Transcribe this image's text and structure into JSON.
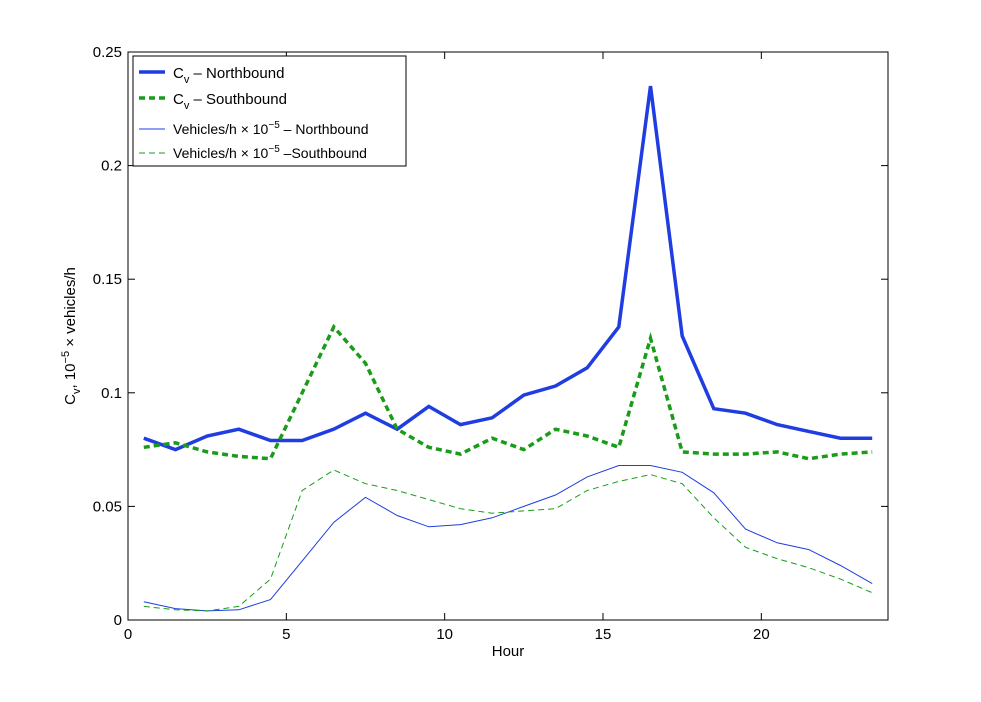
{
  "chart_data": {
    "type": "line",
    "xlabel": "Hour",
    "ylabel": {
      "base": "C",
      "base_sub": "v",
      "comma": ", 10",
      "exp": "−5",
      "rest": " × vehicles/h"
    },
    "xlim": [
      0,
      24
    ],
    "ylim": [
      0,
      0.25
    ],
    "xticks": [
      0,
      5,
      10,
      15,
      20
    ],
    "xtick_labels": [
      "0",
      "5",
      "10",
      "15",
      "20"
    ],
    "yticks": [
      0,
      0.05,
      0.1,
      0.15,
      0.2,
      0.25
    ],
    "ytick_labels": [
      "0",
      "0.05",
      "0.1",
      "0.15",
      "0.2",
      "0.25"
    ],
    "grid": false,
    "legend_position": "top-left",
    "x": [
      0.5,
      1.5,
      2.5,
      3.5,
      4.5,
      5.5,
      6.5,
      7.5,
      8.5,
      9.5,
      10.5,
      11.5,
      12.5,
      13.5,
      14.5,
      15.5,
      16.5,
      17.5,
      18.5,
      19.5,
      20.5,
      21.5,
      22.5,
      23.5
    ],
    "series": [
      {
        "legend": {
          "base": "C",
          "sub": "v",
          "rest": " – Northbound"
        },
        "color": "#1f3de0",
        "style": "thick-solid",
        "values": [
          0.08,
          0.075,
          0.081,
          0.084,
          0.079,
          0.079,
          0.084,
          0.091,
          0.084,
          0.094,
          0.086,
          0.089,
          0.099,
          0.103,
          0.111,
          0.129,
          0.235,
          0.125,
          0.093,
          0.091,
          0.086,
          0.083,
          0.08,
          0.08
        ]
      },
      {
        "legend": {
          "base": "C",
          "sub": "v",
          "rest": " – Southbound"
        },
        "color": "#1a9c1a",
        "style": "thick-dashed",
        "values": [
          0.076,
          0.078,
          0.074,
          0.072,
          0.071,
          0.1,
          0.129,
          0.113,
          0.084,
          0.076,
          0.073,
          0.08,
          0.075,
          0.084,
          0.081,
          0.076,
          0.124,
          0.074,
          0.073,
          0.073,
          0.074,
          0.071,
          0.073,
          0.074
        ]
      },
      {
        "legend": {
          "base": "Vehicles/h × 10",
          "sup": "−5",
          "rest": " – Northbound"
        },
        "color": "#1f3de0",
        "style": "thin-solid",
        "values": [
          0.008,
          0.005,
          0.004,
          0.0045,
          0.009,
          0.026,
          0.043,
          0.054,
          0.046,
          0.041,
          0.042,
          0.045,
          0.05,
          0.055,
          0.063,
          0.068,
          0.068,
          0.065,
          0.056,
          0.04,
          0.034,
          0.031,
          0.024,
          0.016
        ]
      },
      {
        "legend": {
          "base": "Vehicles/h × 10",
          "sup": "−5",
          "rest": " –Southbound"
        },
        "color": "#1a9c1a",
        "style": "thin-dashed",
        "values": [
          0.006,
          0.0045,
          0.004,
          0.006,
          0.018,
          0.057,
          0.066,
          0.06,
          0.057,
          0.053,
          0.049,
          0.047,
          0.048,
          0.049,
          0.057,
          0.061,
          0.064,
          0.06,
          0.045,
          0.032,
          0.027,
          0.023,
          0.018,
          0.012
        ]
      }
    ]
  }
}
